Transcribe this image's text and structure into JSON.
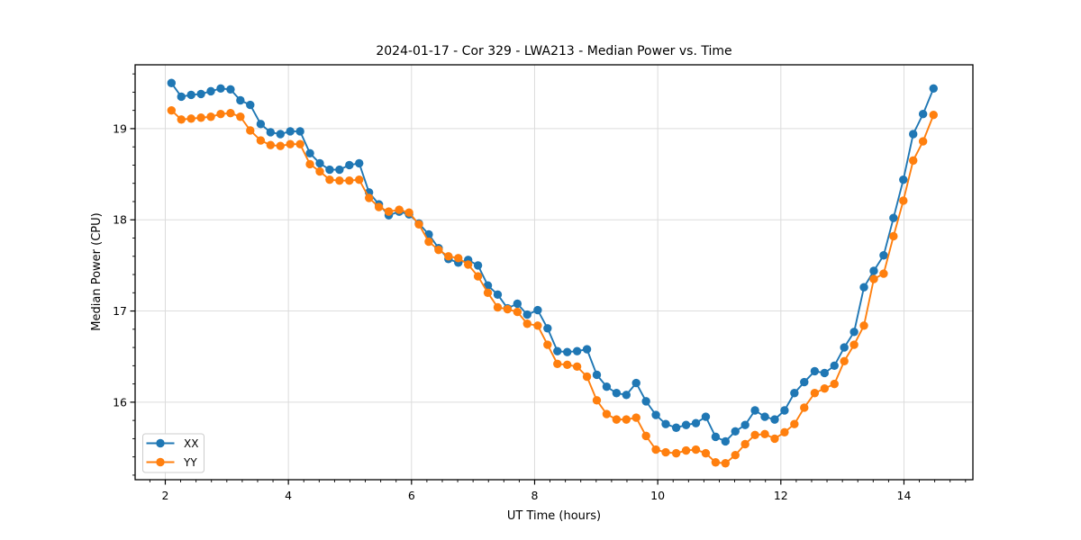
{
  "chart_data": {
    "type": "line",
    "title": "2024-01-17 - Cor 329 - LWA213 - Median Power vs. Time",
    "xlabel": "UT Time (hours)",
    "ylabel": "Median Power (CPU)",
    "xlim": [
      1.51,
      15.12
    ],
    "ylim": [
      15.15,
      19.7
    ],
    "xticks": [
      2,
      4,
      6,
      8,
      10,
      12,
      14
    ],
    "yticks": [
      16,
      17,
      18,
      19
    ],
    "x_minor_step": 0.25,
    "y_minor_step": 0.2,
    "grid": true,
    "grid_color": "#dcdcdc",
    "legend_position": "lower left",
    "x": [
      2.1,
      2.26,
      2.42,
      2.58,
      2.74,
      2.9,
      3.06,
      3.22,
      3.38,
      3.55,
      3.71,
      3.87,
      4.03,
      4.19,
      4.35,
      4.51,
      4.67,
      4.83,
      4.99,
      5.15,
      5.31,
      5.47,
      5.63,
      5.8,
      5.96,
      6.12,
      6.28,
      6.44,
      6.6,
      6.76,
      6.92,
      7.08,
      7.24,
      7.4,
      7.56,
      7.72,
      7.88,
      8.05,
      8.21,
      8.37,
      8.53,
      8.69,
      8.85,
      9.01,
      9.17,
      9.33,
      9.49,
      9.65,
      9.81,
      9.97,
      10.13,
      10.3,
      10.46,
      10.62,
      10.78,
      10.94,
      11.1,
      11.26,
      11.42,
      11.58,
      11.74,
      11.9,
      12.06,
      12.22,
      12.38,
      12.55,
      12.71,
      12.87,
      13.03,
      13.19,
      13.35,
      13.51,
      13.67,
      13.83,
      13.99,
      14.15,
      14.31,
      14.48
    ],
    "series": [
      {
        "name": "XX",
        "color": "#1f77b4",
        "values": [
          19.5,
          19.35,
          19.37,
          19.38,
          19.41,
          19.44,
          19.43,
          19.31,
          19.26,
          19.05,
          18.96,
          18.94,
          18.97,
          18.97,
          18.73,
          18.62,
          18.55,
          18.55,
          18.6,
          18.62,
          18.3,
          18.17,
          18.05,
          18.09,
          18.06,
          17.96,
          17.84,
          17.69,
          17.57,
          17.53,
          17.56,
          17.5,
          17.28,
          17.18,
          17.03,
          17.08,
          16.96,
          17.01,
          16.81,
          16.56,
          16.55,
          16.56,
          16.58,
          16.3,
          16.17,
          16.1,
          16.08,
          16.21,
          16.01,
          15.86,
          15.76,
          15.72,
          15.75,
          15.77,
          15.84,
          15.62,
          15.57,
          15.68,
          15.75,
          15.91,
          15.84,
          15.81,
          15.91,
          16.1,
          16.22,
          16.34,
          16.32,
          16.4,
          16.6,
          16.77,
          17.26,
          17.44,
          17.61,
          18.02,
          18.44,
          18.94,
          19.16,
          19.44
        ]
      },
      {
        "name": "YY",
        "color": "#ff7f0e",
        "values": [
          19.2,
          19.1,
          19.11,
          19.12,
          19.13,
          19.16,
          19.17,
          19.13,
          18.98,
          18.87,
          18.82,
          18.81,
          18.83,
          18.83,
          18.61,
          18.53,
          18.44,
          18.43,
          18.43,
          18.44,
          18.24,
          18.14,
          18.09,
          18.11,
          18.08,
          17.95,
          17.76,
          17.67,
          17.6,
          17.58,
          17.51,
          17.38,
          17.2,
          17.04,
          17.02,
          16.99,
          16.86,
          16.84,
          16.63,
          16.42,
          16.41,
          16.39,
          16.28,
          16.02,
          15.87,
          15.81,
          15.81,
          15.83,
          15.63,
          15.48,
          15.45,
          15.44,
          15.47,
          15.48,
          15.44,
          15.34,
          15.33,
          15.42,
          15.54,
          15.64,
          15.65,
          15.6,
          15.67,
          15.76,
          15.94,
          16.1,
          16.15,
          16.2,
          16.45,
          16.63,
          16.84,
          17.35,
          17.41,
          17.82,
          18.21,
          18.65,
          18.86,
          19.15
        ]
      }
    ]
  }
}
